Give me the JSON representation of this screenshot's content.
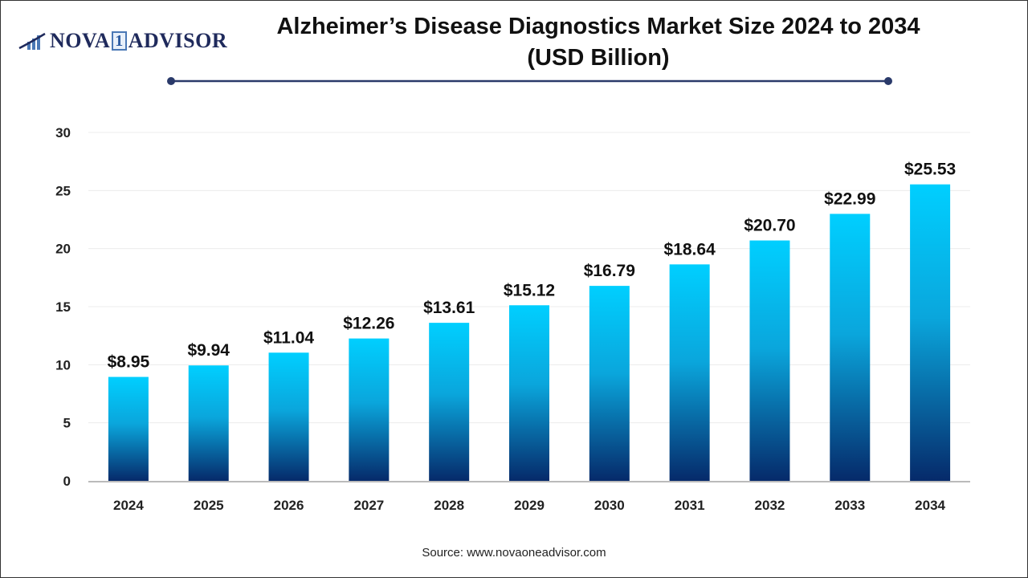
{
  "logo": {
    "text_left": "NOVA",
    "text_one": "1",
    "text_right": "ADVISOR"
  },
  "title_line1": "Alzheimer’s Disease Diagnostics Market Size 2024 to 2034",
  "title_line2": "(USD Billion)",
  "source": "Source: www.novaoneadvisor.com",
  "colors": {
    "bar_top": "#00cfff",
    "bar_bottom": "#062a6a",
    "title_rule": "#2a3a6a"
  },
  "chart_data": {
    "type": "bar",
    "title": "Alzheimer’s Disease Diagnostics Market Size 2024 to 2034 (USD Billion)",
    "categories": [
      "2024",
      "2025",
      "2026",
      "2027",
      "2028",
      "2029",
      "2030",
      "2031",
      "2032",
      "2033",
      "2034"
    ],
    "values": [
      8.95,
      9.94,
      11.04,
      12.26,
      13.61,
      15.12,
      16.79,
      18.64,
      20.7,
      22.99,
      25.53
    ],
    "data_labels": [
      "$8.95",
      "$9.94",
      "$11.04",
      "$12.26",
      "$13.61",
      "$15.12",
      "$16.79",
      "$18.64",
      "$20.70",
      "$22.99",
      "$25.53"
    ],
    "yticks": [
      0,
      5,
      10,
      15,
      20,
      25,
      30
    ],
    "ylim": [
      0,
      30
    ],
    "grid": true,
    "legend": "none"
  }
}
